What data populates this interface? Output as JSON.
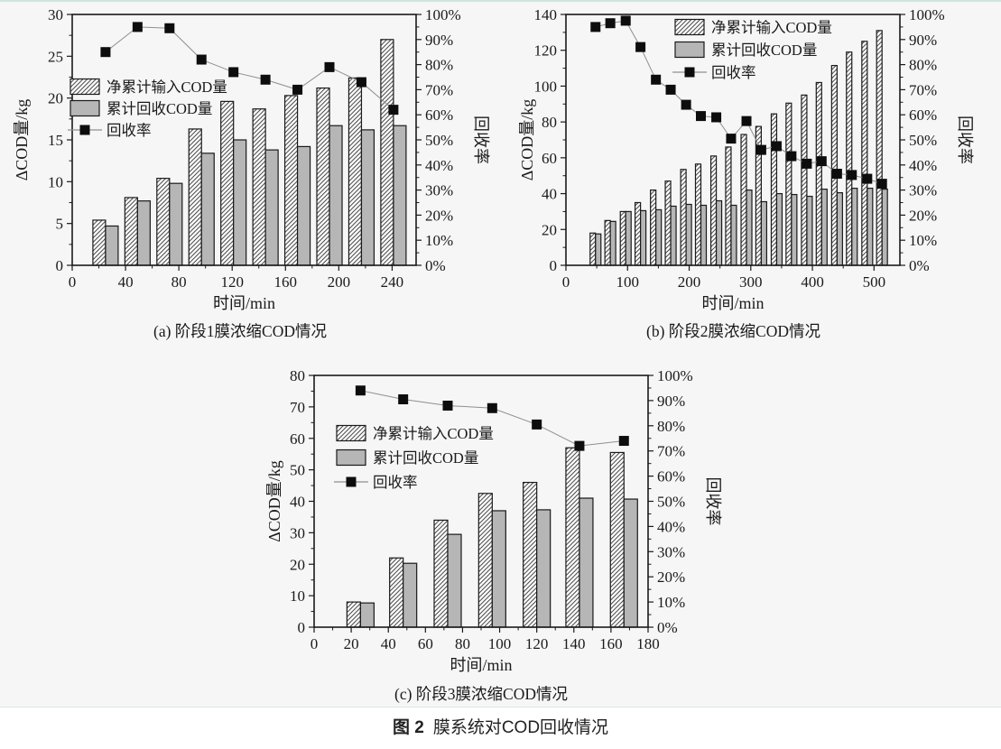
{
  "page": {
    "background_color": "#f5f6f5",
    "top_border_color": "#cfe4e1",
    "colors": {
      "bar_gray": "#b5b6b5",
      "bar_outline": "#1a1a1a",
      "hatch_line": "#2a2a2a",
      "hatch_bg": "#fdfdfd",
      "marker_black": "#0d0d0d",
      "rate_line": "#8f8f8f",
      "axis": "#1a1a1a",
      "text": "#1a1a1a"
    },
    "caption": {
      "label": "图 2",
      "text": "膜系统对COD回收情况"
    }
  },
  "chart_data": [
    {
      "id": "a",
      "type": "bar",
      "caption": "(a) 阶段1膜浓缩COD情况",
      "xlabel": "时间/min",
      "ylabel_left": "ΔCOD量/kg",
      "ylabel_right": "回收率",
      "legend_position": "inside-left",
      "grid": false,
      "xlim": [
        0,
        258
      ],
      "xticks": [
        0,
        40,
        80,
        120,
        160,
        200,
        240
      ],
      "x_minor_step": 20,
      "ylim_left": [
        0,
        30
      ],
      "yticks_left": [
        0,
        5,
        10,
        15,
        20,
        25,
        30
      ],
      "y_left_minor_step": 2.5,
      "ylim_right": [
        0,
        100
      ],
      "yticks_right": [
        0,
        10,
        20,
        30,
        40,
        50,
        60,
        70,
        80,
        90,
        100
      ],
      "y_right_minor_step": 5,
      "x": [
        25,
        49,
        73,
        97,
        121,
        145,
        169,
        193,
        217,
        241
      ],
      "series": [
        {
          "name": "净累计输入COD量",
          "style": "hatched-bar",
          "axis": "left",
          "values": [
            5.4,
            8.1,
            10.4,
            16.3,
            19.6,
            18.7,
            20.3,
            21.2,
            22.4,
            27.0
          ]
        },
        {
          "name": "累计回收COD量",
          "style": "gray-bar",
          "axis": "left",
          "values": [
            4.7,
            7.7,
            9.8,
            13.4,
            15.0,
            13.8,
            14.2,
            16.7,
            16.2,
            16.7
          ]
        },
        {
          "name": "回收率",
          "style": "line-square",
          "axis": "right",
          "unit": "%",
          "values": [
            85,
            95,
            94.5,
            82,
            77,
            74,
            70,
            79,
            73,
            62
          ]
        }
      ]
    },
    {
      "id": "b",
      "type": "bar",
      "caption": "(b) 阶段2膜浓缩COD情况",
      "xlabel": "时间/min",
      "ylabel_left": "ΔCOD量/kg",
      "ylabel_right": "回收率",
      "legend_position": "inside-top",
      "grid": false,
      "xlim": [
        0,
        542
      ],
      "xticks": [
        0,
        100,
        200,
        300,
        400,
        500
      ],
      "x_minor_step": 50,
      "ylim_left": [
        0,
        140
      ],
      "yticks_left": [
        0,
        20,
        40,
        60,
        80,
        100,
        120,
        140
      ],
      "y_left_minor_step": 10,
      "ylim_right": [
        0,
        100
      ],
      "yticks_right": [
        0,
        10,
        20,
        30,
        40,
        50,
        60,
        70,
        80,
        90,
        100
      ],
      "y_right_minor_step": 5,
      "x": [
        48,
        72,
        97,
        121,
        146,
        170,
        195,
        219,
        244,
        268,
        293,
        317,
        342,
        366,
        391,
        415,
        440,
        464,
        489,
        513
      ],
      "series": [
        {
          "name": "净累计输入COD量",
          "style": "hatched-bar",
          "axis": "left",
          "values": [
            18,
            25,
            30,
            35,
            42,
            47,
            53.5,
            56.5,
            61,
            66,
            73,
            77.5,
            84.5,
            90.5,
            95,
            102,
            111.5,
            119,
            125,
            131
          ]
        },
        {
          "name": "累计回收COD量",
          "style": "gray-bar",
          "axis": "left",
          "values": [
            17.5,
            24.5,
            30,
            30.5,
            31,
            33,
            34,
            33.5,
            36,
            33.5,
            42,
            35.5,
            40,
            39.5,
            38.5,
            42.5,
            40.5,
            43,
            43,
            42.5
          ]
        },
        {
          "name": "回收率",
          "style": "line-square",
          "axis": "right",
          "unit": "%",
          "values": [
            95,
            96.5,
            97.5,
            87,
            74,
            70,
            64,
            59.5,
            59,
            50.5,
            57.5,
            46,
            47.5,
            43.5,
            40.5,
            41.5,
            36.5,
            36,
            34.5,
            32.5
          ]
        }
      ]
    },
    {
      "id": "c",
      "type": "bar",
      "caption": "(c) 阶段3膜浓缩COD情况",
      "xlabel": "时间/min",
      "ylabel_left": "ΔCOD量/kg",
      "ylabel_right": "回收率",
      "legend_position": "inside-left",
      "grid": false,
      "xlim": [
        0,
        180
      ],
      "xticks": [
        0,
        20,
        40,
        60,
        80,
        100,
        120,
        140,
        160,
        180
      ],
      "x_minor_step": 10,
      "ylim_left": [
        0,
        80
      ],
      "yticks_left": [
        0,
        10,
        20,
        30,
        40,
        50,
        60,
        70,
        80
      ],
      "y_left_minor_step": 5,
      "ylim_right": [
        0,
        100
      ],
      "yticks_right": [
        0,
        10,
        20,
        30,
        40,
        50,
        60,
        70,
        80,
        90,
        100
      ],
      "y_right_minor_step": 5,
      "x": [
        25,
        48,
        72,
        96,
        120,
        143,
        167
      ],
      "series": [
        {
          "name": "净累计输入COD量",
          "style": "hatched-bar",
          "axis": "left",
          "values": [
            8,
            22,
            34,
            42.5,
            46,
            57,
            55.5
          ]
        },
        {
          "name": "累计回收COD量",
          "style": "gray-bar",
          "axis": "left",
          "values": [
            7.7,
            20.3,
            29.5,
            37,
            37.3,
            41,
            40.7
          ]
        },
        {
          "name": "回收率",
          "style": "line-square",
          "axis": "right",
          "unit": "%",
          "values": [
            94,
            90.5,
            88,
            87,
            80.5,
            72,
            74
          ]
        }
      ]
    }
  ]
}
